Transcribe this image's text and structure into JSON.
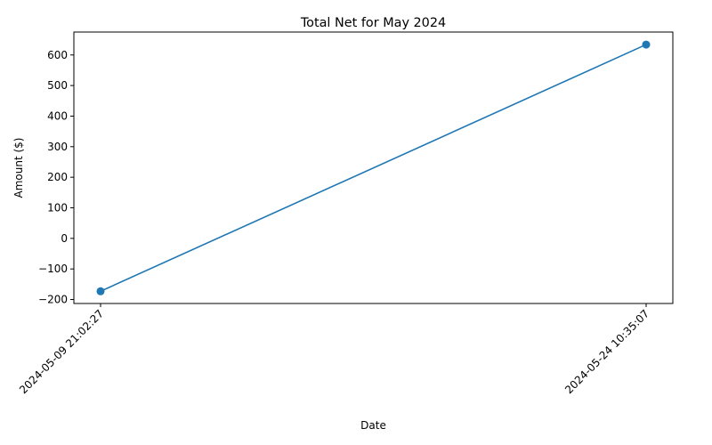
{
  "chart_data": {
    "type": "line",
    "title": "Total Net for May 2024",
    "xlabel": "Date",
    "ylabel": "Amount ($)",
    "categories": [
      "2024-05-09 21:02:27",
      "2024-05-24 10:35:07"
    ],
    "series": [
      {
        "values": [
          -173,
          634
        ],
        "color": "#1f77b4",
        "marker": "circle"
      }
    ],
    "ylim": [
      -213,
      675
    ],
    "yticks": [
      -200,
      -100,
      0,
      100,
      200,
      300,
      400,
      500,
      600
    ],
    "grid": false,
    "legend": "none"
  }
}
